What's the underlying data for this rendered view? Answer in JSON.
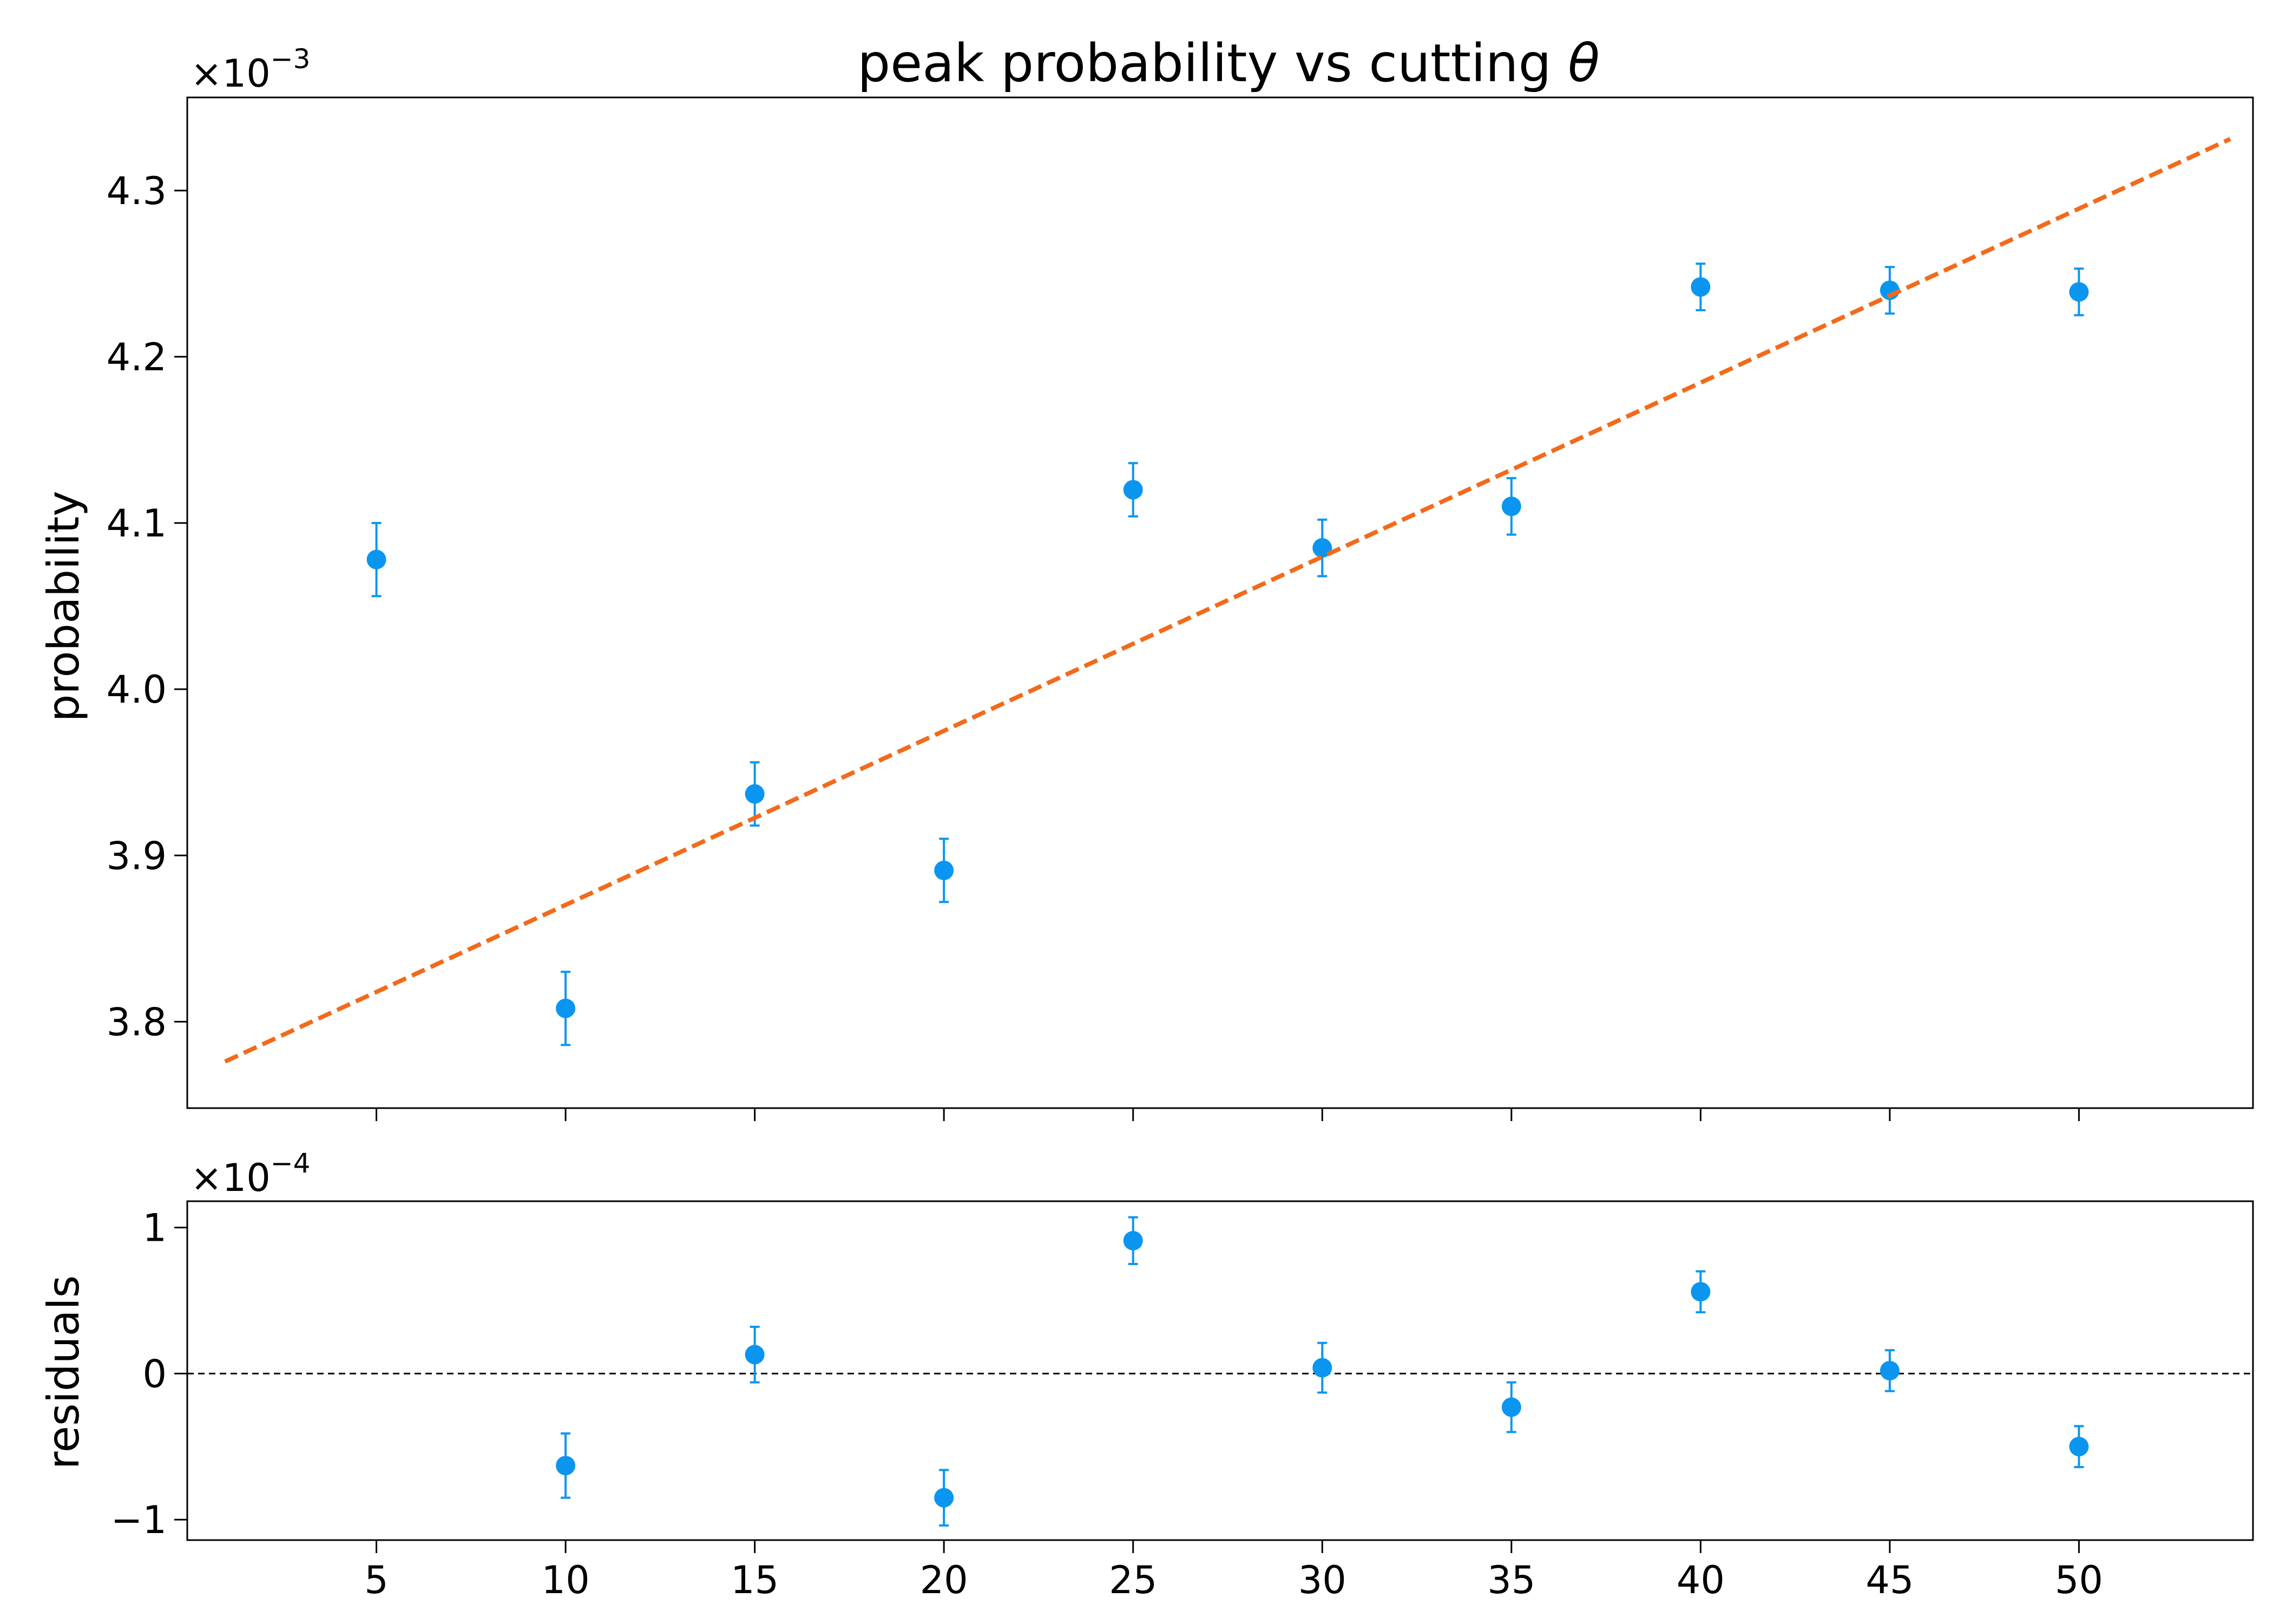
{
  "chart_data": [
    {
      "type": "scatter",
      "title": "peak probability vs cutting θ",
      "ylabel": "probability",
      "xlabel": "",
      "y_offset_text": "×10",
      "y_offset_exponent": "−3",
      "xlim": [
        0,
        54.6
      ],
      "ylim": [
        3.748,
        4.356
      ],
      "x_ticks": [
        5,
        10,
        15,
        20,
        25,
        30,
        35,
        40,
        45,
        50
      ],
      "y_ticks": [
        3.8,
        3.9,
        4.0,
        4.1,
        4.2,
        4.3
      ],
      "y_tick_labels": [
        "3.8",
        "3.9",
        "4.0",
        "4.1",
        "4.2",
        "4.3"
      ],
      "grid": false,
      "series": [
        {
          "kind": "errorbar",
          "color": "#0a96f0",
          "x": [
            5,
            10,
            15,
            20,
            25,
            30,
            35,
            40,
            45,
            50
          ],
          "y": [
            4.078,
            3.808,
            3.937,
            3.891,
            4.12,
            4.085,
            4.11,
            4.242,
            4.24,
            4.239
          ],
          "yerr": [
            0.022,
            0.022,
            0.019,
            0.019,
            0.016,
            0.017,
            0.017,
            0.014,
            0.014,
            0.014
          ]
        },
        {
          "kind": "fit-line",
          "color": "#f26a1b",
          "style": "dashed",
          "x": [
            1,
            54
          ],
          "y": [
            3.776,
            4.331
          ]
        }
      ]
    },
    {
      "type": "scatter",
      "title": "",
      "ylabel": "residuals",
      "xlabel": "",
      "y_offset_text": "×10",
      "y_offset_exponent": "−4",
      "xlim": [
        0,
        54.6
      ],
      "ylim": [
        -1.14,
        1.18
      ],
      "x_ticks": [
        5,
        10,
        15,
        20,
        25,
        30,
        35,
        40,
        45,
        50
      ],
      "x_tick_labels": [
        "5",
        "10",
        "15",
        "20",
        "25",
        "30",
        "35",
        "40",
        "45",
        "50"
      ],
      "y_ticks": [
        -1,
        0,
        1
      ],
      "y_tick_labels": [
        "−1",
        "0",
        "1"
      ],
      "grid": false,
      "reference_line": {
        "y": 0,
        "style": "dashed",
        "color": "#000000"
      },
      "series": [
        {
          "kind": "errorbar",
          "color": "#0a96f0",
          "x": [
            10,
            15,
            20,
            25,
            30,
            35,
            40,
            45,
            50
          ],
          "y": [
            -0.63,
            0.13,
            -0.85,
            0.91,
            0.04,
            -0.23,
            0.56,
            0.02,
            -0.5
          ],
          "yerr": [
            0.22,
            0.19,
            0.19,
            0.16,
            0.17,
            0.17,
            0.14,
            0.14,
            0.14
          ]
        }
      ]
    }
  ]
}
